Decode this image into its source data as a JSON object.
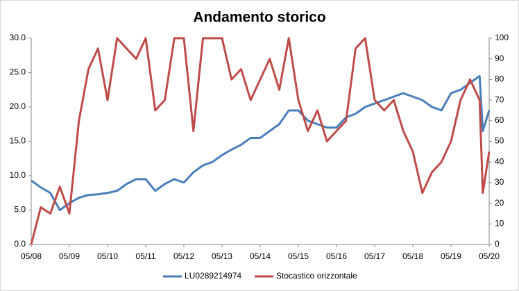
{
  "chart_data": {
    "type": "line",
    "title": "Andamento storico",
    "x": [
      "05/08",
      "08/08",
      "11/08",
      "02/09",
      "05/09",
      "08/09",
      "11/09",
      "02/10",
      "05/10",
      "08/10",
      "11/10",
      "02/11",
      "05/11",
      "08/11",
      "11/11",
      "02/12",
      "05/12",
      "08/12",
      "11/12",
      "02/13",
      "05/13",
      "08/13",
      "11/13",
      "02/14",
      "05/14",
      "08/14",
      "11/14",
      "02/15",
      "05/15",
      "08/15",
      "11/15",
      "02/16",
      "05/16",
      "08/16",
      "11/16",
      "02/17",
      "05/17",
      "08/17",
      "11/17",
      "02/18",
      "05/18",
      "08/18",
      "11/18",
      "02/19",
      "05/19",
      "08/19",
      "11/19",
      "02/20",
      "03/20",
      "05/20"
    ],
    "series": [
      {
        "name": "LU0289214974",
        "color": "#4a7ebb",
        "values": [
          9.3,
          8.3,
          7.5,
          5.0,
          6.0,
          6.8,
          7.2,
          7.3,
          7.5,
          7.8,
          8.8,
          9.5,
          9.5,
          7.8,
          8.8,
          9.5,
          9.0,
          10.5,
          11.5,
          12.0,
          13.0,
          13.8,
          14.5,
          15.5,
          15.5,
          16.5,
          17.5,
          19.5,
          19.5,
          18.0,
          17.5,
          17.0,
          17.0,
          18.5,
          19.0,
          20.0,
          20.5,
          21.0,
          21.5,
          22.0,
          21.5,
          21.0,
          20.0,
          19.5,
          22.0,
          22.5,
          23.5,
          24.5,
          16.5,
          19.5
        ]
      },
      {
        "name": "Stocastico orizzontale",
        "color": "#be4b48",
        "axis": "y2",
        "values": [
          0,
          18,
          15,
          28,
          15,
          60,
          85,
          95,
          70,
          100,
          95,
          90,
          100,
          65,
          70,
          100,
          100,
          55,
          100,
          100,
          100,
          80,
          85,
          70,
          80,
          90,
          75,
          100,
          70,
          55,
          65,
          50,
          55,
          60,
          95,
          100,
          70,
          65,
          70,
          55,
          45,
          25,
          35,
          40,
          50,
          70,
          80,
          70,
          25,
          45
        ]
      }
    ],
    "xlim": [
      "05/08",
      "05/20"
    ],
    "xticks": [
      "05/08",
      "05/09",
      "05/10",
      "05/11",
      "05/12",
      "05/13",
      "05/14",
      "05/15",
      "05/16",
      "05/17",
      "05/18",
      "05/19",
      "05/20"
    ],
    "ylim": [
      0,
      30
    ],
    "yticks": [
      {
        "value": 0,
        "label": "0.0"
      },
      {
        "value": 5,
        "label": "5.0"
      },
      {
        "value": 10,
        "label": "10.0"
      },
      {
        "value": 15,
        "label": "15.0"
      },
      {
        "value": 20,
        "label": "20.0"
      },
      {
        "value": 25,
        "label": "25.0"
      },
      {
        "value": 30,
        "label": "30.0"
      }
    ],
    "y2lim": [
      0,
      100
    ],
    "y2ticks": [
      0,
      10,
      20,
      30,
      40,
      50,
      60,
      70,
      80,
      90,
      100
    ],
    "legend": "bottom"
  }
}
